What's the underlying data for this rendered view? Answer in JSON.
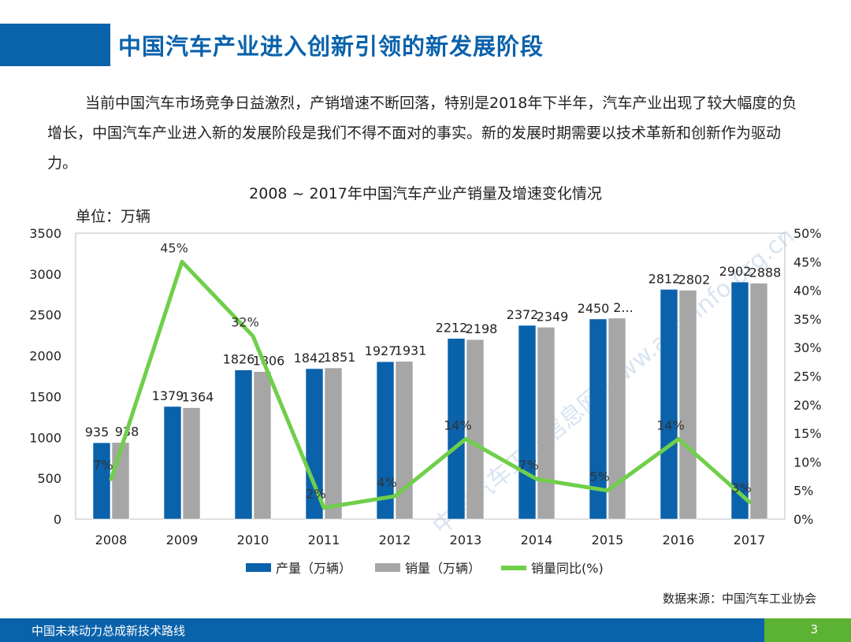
{
  "header": {
    "title": "中国汽车产业进入创新引领的新发展阶段"
  },
  "intro": {
    "text": "当前中国汽车市场竞争日益激烈，产销增速不断回落，特别是2018年下半年，汽车产业出现了较大幅度的负增长，中国汽车产业进入新的发展阶段是我们不得不面对的事实。新的发展时期需要以技术革新和创新作为驱动力。"
  },
  "chart_data": {
    "type": "bar",
    "title": "2008 ~ 2017年中国汽车产业产销量及增速变化情况",
    "unit_label": "单位：万辆",
    "categories": [
      "2008",
      "2009",
      "2010",
      "2011",
      "2012",
      "2013",
      "2014",
      "2015",
      "2016",
      "2017"
    ],
    "series": [
      {
        "name": "产量（万辆）",
        "type": "bar",
        "axis": "left",
        "color": "#0a62ab",
        "values": [
          935,
          1379,
          1826,
          1842,
          1927,
          2212,
          2372,
          2450,
          2812,
          2902
        ],
        "labels": [
          "935",
          "1379",
          "1826",
          "1842",
          "1927",
          "2212",
          "2372",
          "2450",
          "2812",
          "2902"
        ]
      },
      {
        "name": "销量（万辆）",
        "type": "bar",
        "axis": "left",
        "color": "#a6a6a6",
        "values": [
          938,
          1364,
          1806,
          1851,
          1931,
          2198,
          2349,
          2460,
          2802,
          2888
        ],
        "labels": [
          "938",
          "1364",
          "1806",
          "1851",
          "1931",
          "2198",
          "2349",
          "2...",
          "2802",
          "2888"
        ]
      },
      {
        "name": "销量同比(%)",
        "type": "line",
        "axis": "right",
        "color": "#6fcf4a",
        "values": [
          7,
          45,
          32,
          2,
          4,
          14,
          7,
          5,
          14,
          3
        ],
        "labels": [
          "7%",
          "45%",
          "32%",
          "2%",
          "4%",
          "14%",
          "7%",
          "5%",
          "14%",
          "3%"
        ]
      }
    ],
    "y_left": {
      "min": 0,
      "max": 3500,
      "ticks": [
        "0",
        "500",
        "1000",
        "1500",
        "2000",
        "2500",
        "3000",
        "3500"
      ]
    },
    "y_right": {
      "min": 0,
      "max": 50,
      "ticks": [
        "0%",
        "5%",
        "10%",
        "15%",
        "20%",
        "25%",
        "30%",
        "35%",
        "40%",
        "45%",
        "50%"
      ]
    },
    "grid": false,
    "legend": "bottom",
    "source": "数据来源：中国汽车工业协会",
    "watermark": "中国汽车工业信息网 www.autoinfo.org.cn"
  },
  "footer": {
    "text": "中国未来动力总成新技术路线",
    "page": "3"
  }
}
